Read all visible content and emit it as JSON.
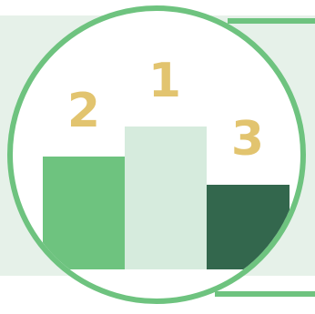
{
  "podium": {
    "places": [
      {
        "label": "2",
        "bar_color": "#6ec37f"
      },
      {
        "label": "1",
        "bar_color": "#d6ebdd"
      },
      {
        "label": "3",
        "bar_color": "#33674d"
      }
    ]
  },
  "colors": {
    "ring": "#6ec37f",
    "panel_background": "#e6f1e9",
    "number_color": "#e2c46f"
  },
  "icon": "podium-icon"
}
